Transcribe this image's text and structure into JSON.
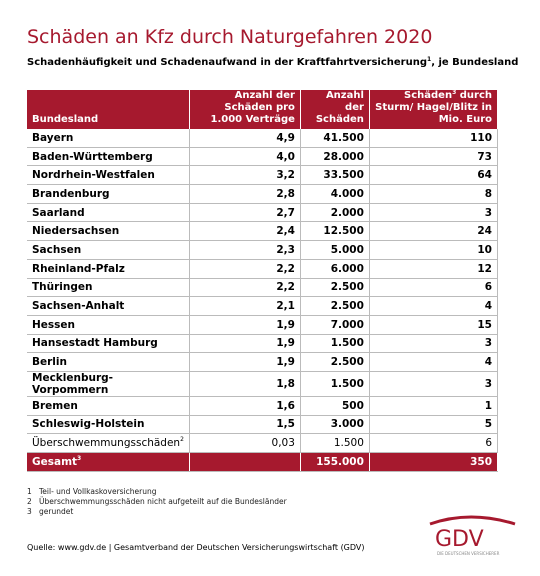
{
  "header": {
    "title": "Schäden an Kfz durch Naturgefahren 2020",
    "subtitle": {
      "text": "Schadenhäufigkeit und Schadenaufwand in der Kraftfahrtversicherung",
      "sup": "1",
      "rest": ", je Bundesland"
    }
  },
  "table": {
    "columns": {
      "state": "Bundesland",
      "frequency": "Anzahl der Schäden pro 1.000 Verträge",
      "count": "Anzahl der Schäden",
      "storm": {
        "text": "Schäden",
        "sup": "3",
        "rest": " durch Sturm/ Hagel/Blitz in Mio. Euro"
      }
    },
    "rows": [
      [
        "Bayern",
        "4,9",
        "41.500",
        "110"
      ],
      [
        "Baden-Württemberg",
        "4,0",
        "28.000",
        "73"
      ],
      [
        "Nordrhein-Westfalen",
        "3,2",
        "33.500",
        "64"
      ],
      [
        "Brandenburg",
        "2,8",
        "4.000",
        "8"
      ],
      [
        "Saarland",
        "2,7",
        "2.000",
        "3"
      ],
      [
        "Niedersachsen",
        "2,4",
        "12.500",
        "24"
      ],
      [
        "Sachsen",
        "2,3",
        "5.000",
        "10"
      ],
      [
        "Rheinland-Pfalz",
        "2,2",
        "6.000",
        "12"
      ],
      [
        "Thüringen",
        "2,2",
        "2.500",
        "6"
      ],
      [
        "Sachsen-Anhalt",
        "2,1",
        "2.500",
        "4"
      ],
      [
        "Hessen",
        "1,9",
        "7.000",
        "15"
      ],
      [
        "Hansestadt Hamburg",
        "1,9",
        "1.500",
        "3"
      ],
      [
        "Berlin",
        "1,9",
        "2.500",
        "4"
      ],
      [
        "Mecklenburg-Vorpommern",
        "1,8",
        "1.500",
        "3"
      ],
      [
        "Bremen",
        "1,6",
        "500",
        "1"
      ],
      [
        "Schleswig-Holstein",
        "1,5",
        "3.000",
        "5"
      ]
    ],
    "flood": {
      "name": "Überschwemmungsschäden",
      "sup": "2",
      "frequency": "0,03",
      "count": "1.500",
      "storm": "6"
    },
    "total": {
      "name": "Gesamt",
      "sup": "3",
      "count": "155.000",
      "storm": "350"
    }
  },
  "footnotes": [
    {
      "num": "1",
      "text": "Teil- und Vollkaskoversicherung"
    },
    {
      "num": "2",
      "text": "Überschwemmungsschäden nicht aufgeteilt auf die Bundesländer"
    },
    {
      "num": "3",
      "text": "gerundet"
    }
  ],
  "source": "Quelle: www.gdv.de | Gesamtverband der Deutschen Versicherungswirtschaft (GDV)",
  "logo": {
    "name": "GDV",
    "tagline": "DIE DEUTSCHEN VERSICHERER"
  }
}
